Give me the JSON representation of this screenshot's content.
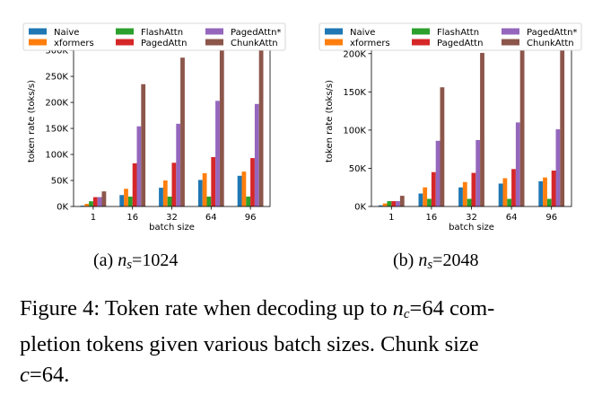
{
  "chart_data": [
    {
      "type": "bar",
      "xlabel": "batch size",
      "ylabel": "token rate (toks/s)",
      "categories": [
        "1",
        "16",
        "32",
        "64",
        "96"
      ],
      "ylim": [
        0,
        345000
      ],
      "yticks": [
        0,
        50000,
        100000,
        150000,
        200000,
        250000,
        300000
      ],
      "ytick_labels": [
        "0K",
        "50K",
        "100K",
        "150K",
        "200K",
        "250K",
        "300K"
      ],
      "legend_position": "top",
      "grid": false,
      "series": [
        {
          "name": "Naive",
          "color": "#1f77b4",
          "values": [
            1500,
            22000,
            36000,
            51000,
            59000
          ]
        },
        {
          "name": "xformers",
          "color": "#ff7f0e",
          "values": [
            5000,
            34000,
            50000,
            64000,
            67000
          ]
        },
        {
          "name": "FlashAttn",
          "color": "#2ca02c",
          "values": [
            10000,
            19000,
            19000,
            19000,
            19000
          ]
        },
        {
          "name": "PagedAttn",
          "color": "#d62728",
          "values": [
            18000,
            83000,
            84000,
            95000,
            93000
          ]
        },
        {
          "name": "PagedAttn*",
          "color": "#9467bd",
          "values": [
            18000,
            154000,
            159000,
            203000,
            197000
          ]
        },
        {
          "name": "ChunkAttn",
          "color": "#8c564b",
          "values": [
            29000,
            235000,
            286000,
            326000,
            332000
          ]
        }
      ],
      "subcaption_label": "(a)",
      "subcaption_var": "n",
      "subcaption_sub": "s",
      "subcaption_value": "=1024"
    },
    {
      "type": "bar",
      "xlabel": "batch size",
      "ylabel": "token rate (toks/s)",
      "categories": [
        "1",
        "16",
        "32",
        "64",
        "96"
      ],
      "ylim": [
        0,
        235000
      ],
      "yticks": [
        0,
        50000,
        100000,
        150000,
        200000
      ],
      "ytick_labels": [
        "0K",
        "50K",
        "100K",
        "150K",
        "200K"
      ],
      "legend_position": "top",
      "grid": false,
      "series": [
        {
          "name": "Naive",
          "color": "#1f77b4",
          "values": [
            1500,
            17000,
            25000,
            30000,
            33000
          ]
        },
        {
          "name": "xformers",
          "color": "#ff7f0e",
          "values": [
            4000,
            25000,
            32000,
            37000,
            38000
          ]
        },
        {
          "name": "FlashAttn",
          "color": "#2ca02c",
          "values": [
            7000,
            10000,
            10000,
            10000,
            10000
          ]
        },
        {
          "name": "PagedAttn",
          "color": "#d62728",
          "values": [
            7000,
            45000,
            44000,
            49000,
            47000
          ]
        },
        {
          "name": "PagedAttn*",
          "color": "#9467bd",
          "values": [
            7000,
            86000,
            87000,
            110000,
            101000
          ]
        },
        {
          "name": "ChunkAttn",
          "color": "#8c564b",
          "values": [
            14000,
            156000,
            201000,
            222000,
            223000
          ]
        }
      ],
      "subcaption_label": "(b)",
      "subcaption_var": "n",
      "subcaption_sub": "s",
      "subcaption_value": "=2048"
    }
  ],
  "caption": {
    "line1_a": "Figure 4: Token rate when decoding up to ",
    "var": "n",
    "sub": "c",
    "line1_b": "=64 com-",
    "line2": "pletion tokens given various batch sizes. Chunk size",
    "line3_var": "c",
    "line3": "=64."
  }
}
